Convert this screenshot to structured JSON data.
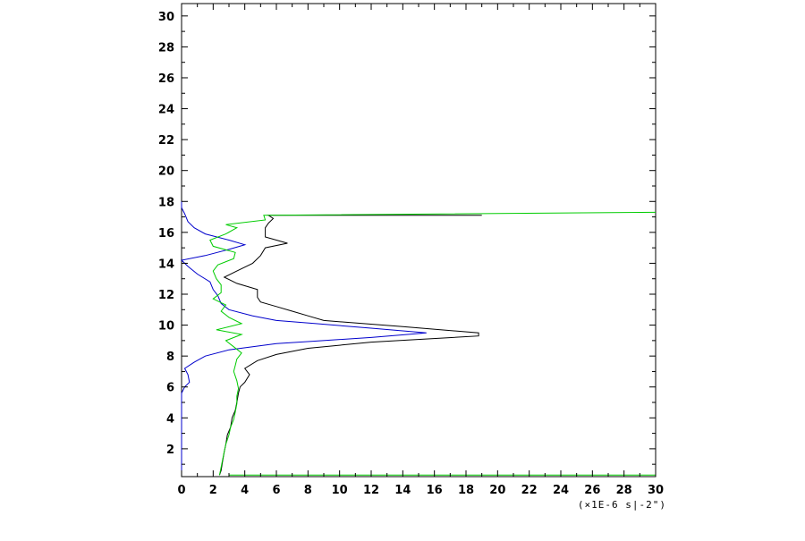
{
  "chart_data": {
    "type": "line",
    "title": "",
    "xlabel": "",
    "ylabel": "",
    "x_unit_label": "(×1E-6 s|-2\")",
    "xlim": [
      0,
      30
    ],
    "ylim": [
      0.2,
      30.8
    ],
    "x_ticks": [
      0,
      2,
      4,
      6,
      8,
      10,
      12,
      14,
      16,
      18,
      20,
      22,
      24,
      26,
      28,
      30
    ],
    "y_ticks": [
      2,
      4,
      6,
      8,
      10,
      12,
      14,
      16,
      18,
      20,
      22,
      24,
      26,
      28,
      30
    ],
    "grid": false,
    "legend": "none",
    "series": [
      {
        "color": "#000000",
        "points": [
          [
            2.4,
            0.3
          ],
          [
            2.5,
            0.6
          ],
          [
            2.6,
            1.2
          ],
          [
            2.7,
            1.8
          ],
          [
            2.8,
            2.3
          ],
          [
            2.9,
            2.9
          ],
          [
            3.1,
            3.4
          ],
          [
            3.2,
            4.0
          ],
          [
            3.4,
            4.5
          ],
          [
            3.5,
            5.0
          ],
          [
            3.6,
            5.6
          ],
          [
            3.7,
            6.0
          ],
          [
            4.0,
            6.3
          ],
          [
            4.3,
            6.8
          ],
          [
            4.0,
            7.2
          ],
          [
            4.8,
            7.7
          ],
          [
            6.0,
            8.1
          ],
          [
            8.0,
            8.5
          ],
          [
            12.0,
            8.9
          ],
          [
            18.8,
            9.3
          ],
          [
            18.8,
            9.5
          ],
          [
            14.0,
            9.9
          ],
          [
            9.0,
            10.3
          ],
          [
            8.0,
            10.6
          ],
          [
            7.0,
            10.9
          ],
          [
            6.0,
            11.2
          ],
          [
            5.0,
            11.5
          ],
          [
            4.8,
            11.8
          ],
          [
            4.8,
            12.3
          ],
          [
            3.5,
            12.7
          ],
          [
            2.7,
            13.1
          ],
          [
            3.5,
            13.5
          ],
          [
            4.5,
            14.0
          ],
          [
            5.0,
            14.5
          ],
          [
            5.3,
            15.0
          ],
          [
            6.7,
            15.3
          ],
          [
            5.3,
            15.7
          ],
          [
            5.3,
            16.3
          ],
          [
            5.5,
            16.6
          ],
          [
            5.8,
            16.9
          ],
          [
            5.5,
            17.1
          ],
          [
            8.0,
            17.1
          ],
          [
            12.0,
            17.1
          ],
          [
            16.0,
            17.1
          ],
          [
            19.0,
            17.1
          ]
        ]
      },
      {
        "color": "#0000cc",
        "points": [
          [
            0,
            0.2
          ],
          [
            0,
            0.6
          ],
          [
            0,
            1.0
          ],
          [
            0,
            1.6
          ],
          [
            0,
            2.0
          ],
          [
            0,
            2.6
          ],
          [
            0,
            3.2
          ],
          [
            0,
            4.0
          ],
          [
            0,
            4.6
          ],
          [
            0,
            5.0
          ],
          [
            0,
            5.6
          ],
          [
            0.2,
            6.0
          ],
          [
            0.5,
            6.3
          ],
          [
            0.4,
            6.8
          ],
          [
            0.2,
            7.2
          ],
          [
            0.8,
            7.6
          ],
          [
            1.5,
            8.0
          ],
          [
            3.0,
            8.4
          ],
          [
            6.0,
            8.8
          ],
          [
            12.0,
            9.2
          ],
          [
            15.5,
            9.5
          ],
          [
            12.0,
            9.8
          ],
          [
            8.5,
            10.1
          ],
          [
            6.0,
            10.3
          ],
          [
            4.5,
            10.6
          ],
          [
            3.0,
            11.0
          ],
          [
            2.5,
            11.4
          ],
          [
            2.3,
            11.9
          ],
          [
            2.0,
            12.3
          ],
          [
            1.8,
            12.8
          ],
          [
            1.0,
            13.3
          ],
          [
            0.4,
            13.8
          ],
          [
            0,
            14.2
          ],
          [
            1.5,
            14.5
          ],
          [
            3.0,
            14.9
          ],
          [
            4.0,
            15.2
          ],
          [
            3.0,
            15.5
          ],
          [
            1.5,
            15.9
          ],
          [
            0.8,
            16.3
          ],
          [
            0.4,
            16.7
          ],
          [
            0.2,
            17.2
          ],
          [
            0,
            17.6
          ],
          [
            0,
            18.0
          ]
        ]
      },
      {
        "color": "#00cc00",
        "points": [
          [
            2.4,
            0.3
          ],
          [
            2.5,
            0.8
          ],
          [
            2.6,
            1.3
          ],
          [
            2.7,
            1.8
          ],
          [
            2.8,
            2.3
          ],
          [
            3.0,
            2.9
          ],
          [
            3.1,
            3.4
          ],
          [
            3.3,
            3.9
          ],
          [
            3.4,
            4.4
          ],
          [
            3.5,
            4.9
          ],
          [
            3.5,
            5.4
          ],
          [
            3.6,
            5.9
          ],
          [
            3.5,
            6.4
          ],
          [
            3.3,
            7.0
          ],
          [
            3.4,
            7.4
          ],
          [
            3.5,
            7.8
          ],
          [
            3.8,
            8.2
          ],
          [
            3.3,
            8.6
          ],
          [
            2.8,
            9.0
          ],
          [
            3.8,
            9.4
          ],
          [
            2.2,
            9.7
          ],
          [
            3.8,
            10.1
          ],
          [
            3.0,
            10.5
          ],
          [
            2.5,
            10.9
          ],
          [
            2.8,
            11.3
          ],
          [
            2.0,
            11.7
          ],
          [
            2.5,
            12.1
          ],
          [
            2.5,
            12.6
          ],
          [
            2.2,
            13.0
          ],
          [
            2.0,
            13.5
          ],
          [
            2.3,
            13.9
          ],
          [
            3.3,
            14.3
          ],
          [
            3.4,
            14.7
          ],
          [
            2.0,
            15.1
          ],
          [
            1.8,
            15.5
          ],
          [
            2.8,
            15.9
          ],
          [
            3.5,
            16.3
          ],
          [
            2.8,
            16.5
          ],
          [
            5.3,
            16.8
          ],
          [
            5.2,
            17.1
          ],
          [
            30,
            17.3
          ]
        ]
      }
    ],
    "bottom_green_trace": {
      "color": "#00cc00",
      "points": [
        [
          3.0,
          0.3
        ],
        [
          10,
          0.3
        ],
        [
          20,
          0.3
        ],
        [
          30,
          0.3
        ]
      ]
    }
  }
}
